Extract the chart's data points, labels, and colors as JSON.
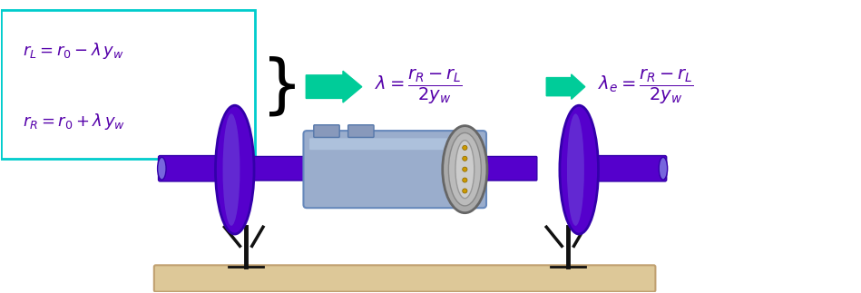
{
  "title": "",
  "background_color": "#ffffff",
  "box_color": "#00cccc",
  "arrow_color": "#00cc99",
  "text_color": "#5500aa",
  "figsize": [
    9.49,
    3.23
  ],
  "dpi": 100
}
